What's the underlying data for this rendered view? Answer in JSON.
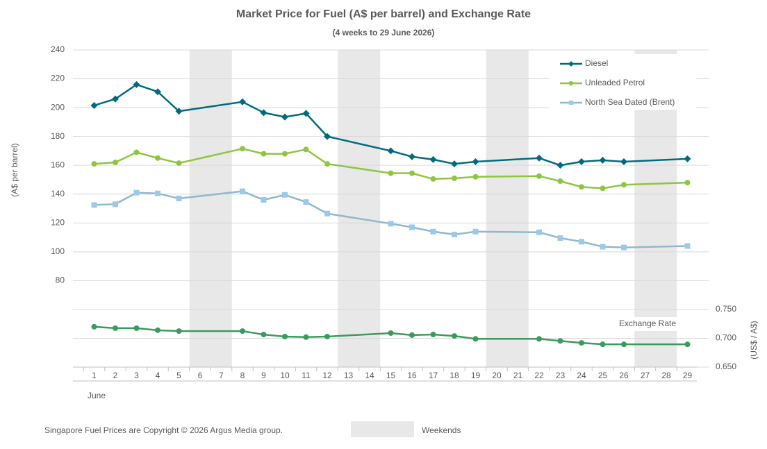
{
  "chart_data": {
    "type": "line",
    "title": "Market Price for Fuel (A$ per barrel) and Exchange Rate",
    "subtitle": "(4 weeks to 29 June 2026)",
    "ylabel": "(A$ per barrel)",
    "y2label": "(US$ / A$)",
    "xlabel": "June",
    "footnote": "Singapore Fuel Prices are Copyright © 2026 Argus Media group.",
    "shade_label": "Weekends",
    "shade_color": "#e8e8e8",
    "weekends": [
      [
        6,
        7
      ],
      [
        13,
        14
      ],
      [
        20,
        21
      ],
      [
        27,
        28
      ]
    ],
    "x": [
      1,
      2,
      3,
      4,
      5,
      8,
      9,
      10,
      11,
      12,
      15,
      16,
      17,
      18,
      19,
      22,
      23,
      24,
      25,
      26,
      29
    ],
    "xlim": [
      0,
      30
    ],
    "xticks": [
      1,
      2,
      3,
      4,
      5,
      6,
      7,
      8,
      9,
      10,
      11,
      12,
      13,
      14,
      15,
      16,
      17,
      18,
      19,
      20,
      21,
      22,
      23,
      24,
      25,
      26,
      27,
      28,
      29
    ],
    "ylim": [
      20,
      240
    ],
    "yticks": [
      80,
      100,
      120,
      140,
      160,
      180,
      200,
      220,
      240
    ],
    "y2lim": [
      0.65,
      1.2
    ],
    "y2ticks": [
      {
        "value": 0.65,
        "label": "0.650"
      },
      {
        "value": 0.7,
        "label": "0.700"
      },
      {
        "value": 0.75,
        "label": "0.750"
      }
    ],
    "grid": true,
    "legend": "upper right",
    "series": [
      {
        "name": "Diesel",
        "color": "#006b7d",
        "marker": "diamond",
        "values": [
          201.5,
          206,
          216,
          211,
          197.5,
          204,
          196.5,
          193.5,
          196,
          180,
          170,
          166,
          164,
          161,
          162.5,
          165,
          160,
          162.5,
          163.5,
          162.5,
          164.5
        ]
      },
      {
        "name": "Unleaded Petrol",
        "color": "#8dc63f",
        "marker": "circle",
        "values": [
          161,
          162,
          169,
          165,
          161.5,
          171.5,
          168,
          168,
          171,
          161,
          154.5,
          154.5,
          150.5,
          151,
          152,
          152.5,
          149,
          145,
          144,
          146.5,
          148
        ]
      },
      {
        "name": "North Sea Dated (Brent)",
        "color": "#8fb9cc",
        "marker": "square",
        "marker_color": "#9cc9ea",
        "values": [
          132.5,
          133,
          141,
          140.5,
          137,
          142,
          136,
          139.5,
          134.5,
          126.5,
          119.5,
          117,
          114,
          112,
          114,
          113.5,
          109.5,
          107,
          103.5,
          103,
          104
        ]
      },
      {
        "name": "Exchange Rate",
        "color": "#3b9a5e",
        "marker": "circle",
        "axis": "y2",
        "values": [
          0.72,
          0.7175,
          0.7175,
          0.714,
          0.7125,
          0.7125,
          0.7065,
          0.703,
          0.702,
          0.703,
          0.709,
          0.7055,
          0.7065,
          0.704,
          0.699,
          0.699,
          0.6955,
          0.692,
          0.6895,
          0.6895,
          0.6895
        ]
      }
    ]
  }
}
